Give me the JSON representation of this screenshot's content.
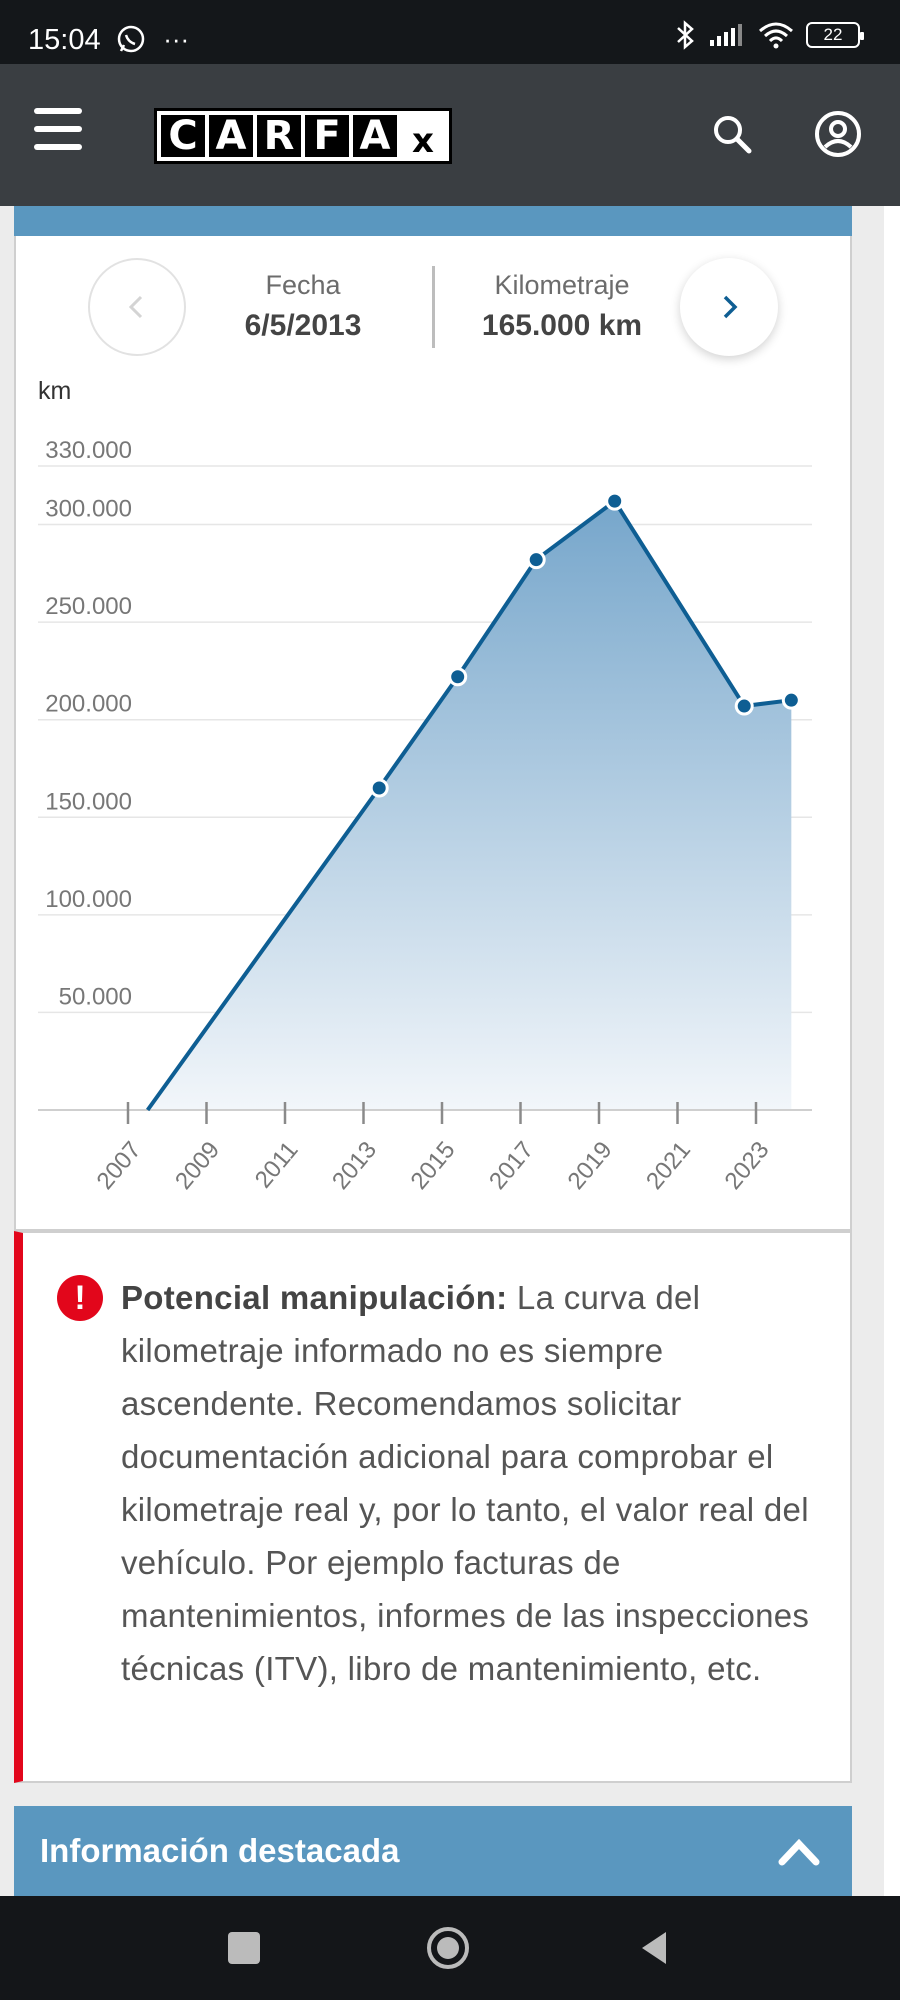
{
  "status_bar": {
    "time": "15:04",
    "left_icons": "whatsapp-icon, more-dots-icon",
    "more": "···",
    "battery": "22"
  },
  "header": {
    "brand": [
      "C",
      "A",
      "R",
      "F",
      "A",
      "x"
    ],
    "menu_icon": "menu-icon",
    "search_icon": "search-icon",
    "account_icon": "account-icon"
  },
  "odometer_nav": {
    "date_label": "Fecha",
    "date_value": "6/5/2013",
    "mileage_label": "Kilometraje",
    "mileage_value": "165.000 km",
    "prev_icon": "chevron-left-icon",
    "next_icon": "chevron-right-icon"
  },
  "chart_data": {
    "type": "area",
    "ylabel": "km",
    "ylim": [
      0,
      330000
    ],
    "y_ticks": [
      50000,
      100000,
      150000,
      200000,
      250000,
      300000,
      330000
    ],
    "y_tick_labels": [
      "50.000",
      "100.000",
      "150.000",
      "200.000",
      "250.000",
      "300.000",
      "330.000"
    ],
    "x_tick_labels": [
      "2007",
      "2009",
      "2011",
      "2013",
      "2015",
      "2017",
      "2019",
      "2021",
      "2023"
    ],
    "xlim": [
      2007,
      2024.2
    ],
    "grid": true,
    "series": [
      {
        "x": [
          2007.5,
          2013.4,
          2015.4,
          2017.4,
          2019.4,
          2022.7,
          2023.9
        ],
        "y": [
          0,
          165000,
          222000,
          282000,
          312000,
          207000,
          210000
        ],
        "markers": [
          false,
          true,
          true,
          true,
          true,
          true,
          true
        ]
      }
    ],
    "colors": {
      "line": "#0e5e93",
      "fill_top": "#76a6cb",
      "fill_bottom": "#f2f6fa",
      "grid": "#e6e6e6",
      "axis": "#8a8a8a"
    }
  },
  "warning": {
    "icon": "exclamation-icon",
    "title": "Potencial manipulación:",
    "body": " La curva del kilometraje informado no es siempre ascendente. Recomendamos solicitar documentación adicional para comprobar el kilometraje real y, por lo tanto, el valor real del vehículo. Por ejemplo facturas de mantenimientos, informes de las inspecciones técnicas (ITV), libro de mantenimiento, etc."
  },
  "section": {
    "title": "Información destacada",
    "chevron_icon": "chevron-up-icon"
  },
  "nav_bar": {
    "recents_icon": "square-icon",
    "home_icon": "home-circle-icon",
    "back_icon": "back-triangle-icon"
  },
  "colors": {
    "header_bg": "#3a3e42",
    "accent": "#5a97bf",
    "warning_red": "#e2061b"
  }
}
